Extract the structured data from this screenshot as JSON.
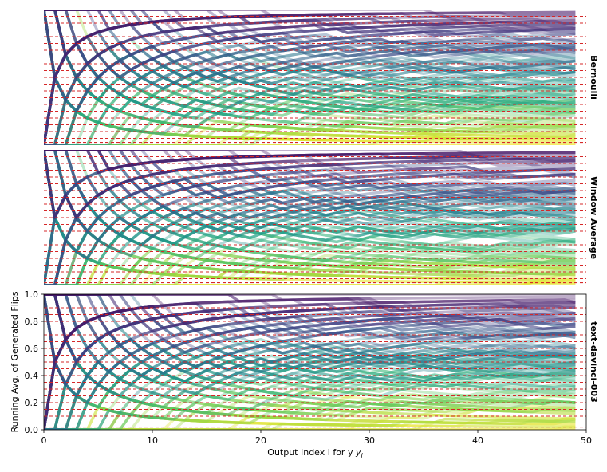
{
  "chart_data": {
    "type": "line",
    "xlabel": "Output Index i for y",
    "xlabel_subscript": "i",
    "ylabel": "Running Avg. of Generated Flips",
    "xlim": [
      0,
      50
    ],
    "ylim": [
      0,
      1
    ],
    "xticks": [
      "0",
      "10",
      "20",
      "30",
      "40",
      "50"
    ],
    "yticks": [
      "0.0",
      "0.2",
      "0.4",
      "0.6",
      "0.8",
      "1.0"
    ],
    "colormap": "viridis",
    "target_line_color": "#d62728",
    "target_probabilities": [
      0.02,
      0.05,
      0.1,
      0.15,
      0.2,
      0.25,
      0.3,
      0.35,
      0.4,
      0.45,
      0.5,
      0.55,
      0.6,
      0.65,
      0.7,
      0.75,
      0.8,
      0.85,
      0.9,
      0.95
    ],
    "panels": [
      {
        "name": "Bernoulli",
        "show_yaxis": false,
        "show_xaxis": false
      },
      {
        "name": "Window Average",
        "show_yaxis": false,
        "show_xaxis": false
      },
      {
        "name": "text-davinci-003",
        "show_yaxis": true,
        "show_xaxis": true
      }
    ]
  }
}
